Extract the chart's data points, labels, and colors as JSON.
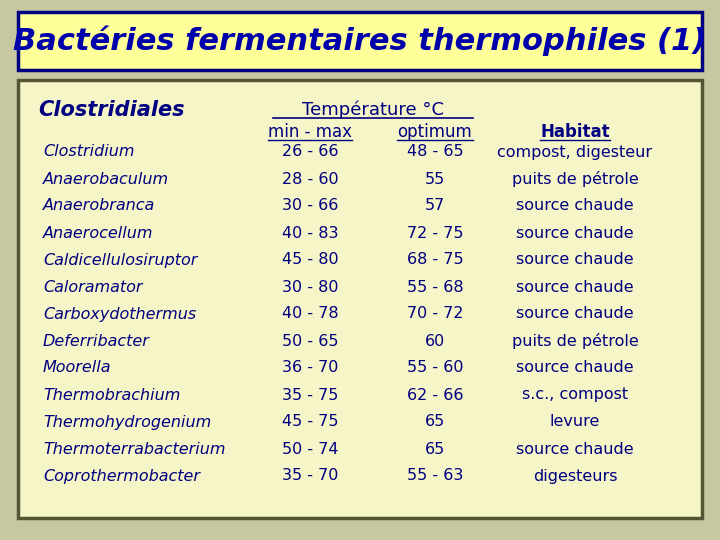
{
  "title": "Bactéries fermentaires thermophiles (1)",
  "title_color": "#0000AA",
  "title_bg": "#FFFF99",
  "title_border": "#000080",
  "bg_color": "#F5F5C8",
  "outer_bg": "#C8C8A0",
  "section_header": "Clostridiales",
  "temp_header": "Température °C",
  "col_headers": [
    "min - max",
    "optimum",
    "Habitat"
  ],
  "rows": [
    [
      "Clostridium",
      "26 - 66",
      "48 - 65",
      "compost, digesteur"
    ],
    [
      "Anaerobaculum",
      "28 - 60",
      "55",
      "puits de pétrole"
    ],
    [
      "Anaerobranca",
      "30 - 66",
      "57",
      "source chaude"
    ],
    [
      "Anaerocellum",
      "40 - 83",
      "72 - 75",
      "source chaude"
    ],
    [
      "Caldicellulosiruptor",
      "45 - 80",
      "68 - 75",
      "source chaude"
    ],
    [
      "Caloramator",
      "30 - 80",
      "55 - 68",
      "source chaude"
    ],
    [
      "Carboxydothermus",
      "40 - 78",
      "70 - 72",
      "source chaude"
    ],
    [
      "Deferribacter",
      "50 - 65",
      "60",
      "puits de pétrole"
    ],
    [
      "Moorella",
      "36 - 70",
      "55 - 60",
      "source chaude"
    ],
    [
      "Thermobrachium",
      "35 - 75",
      "62 - 66",
      "s.c., compost"
    ],
    [
      "Thermohydrogenium",
      "45 - 75",
      "65",
      "levure"
    ],
    [
      "Thermoterrabacterium",
      "50 - 74",
      "65",
      "source chaude"
    ],
    [
      "Coprothermobacter",
      "35 - 70",
      "55 - 63",
      "digesteurs"
    ]
  ],
  "text_color": "#000080"
}
